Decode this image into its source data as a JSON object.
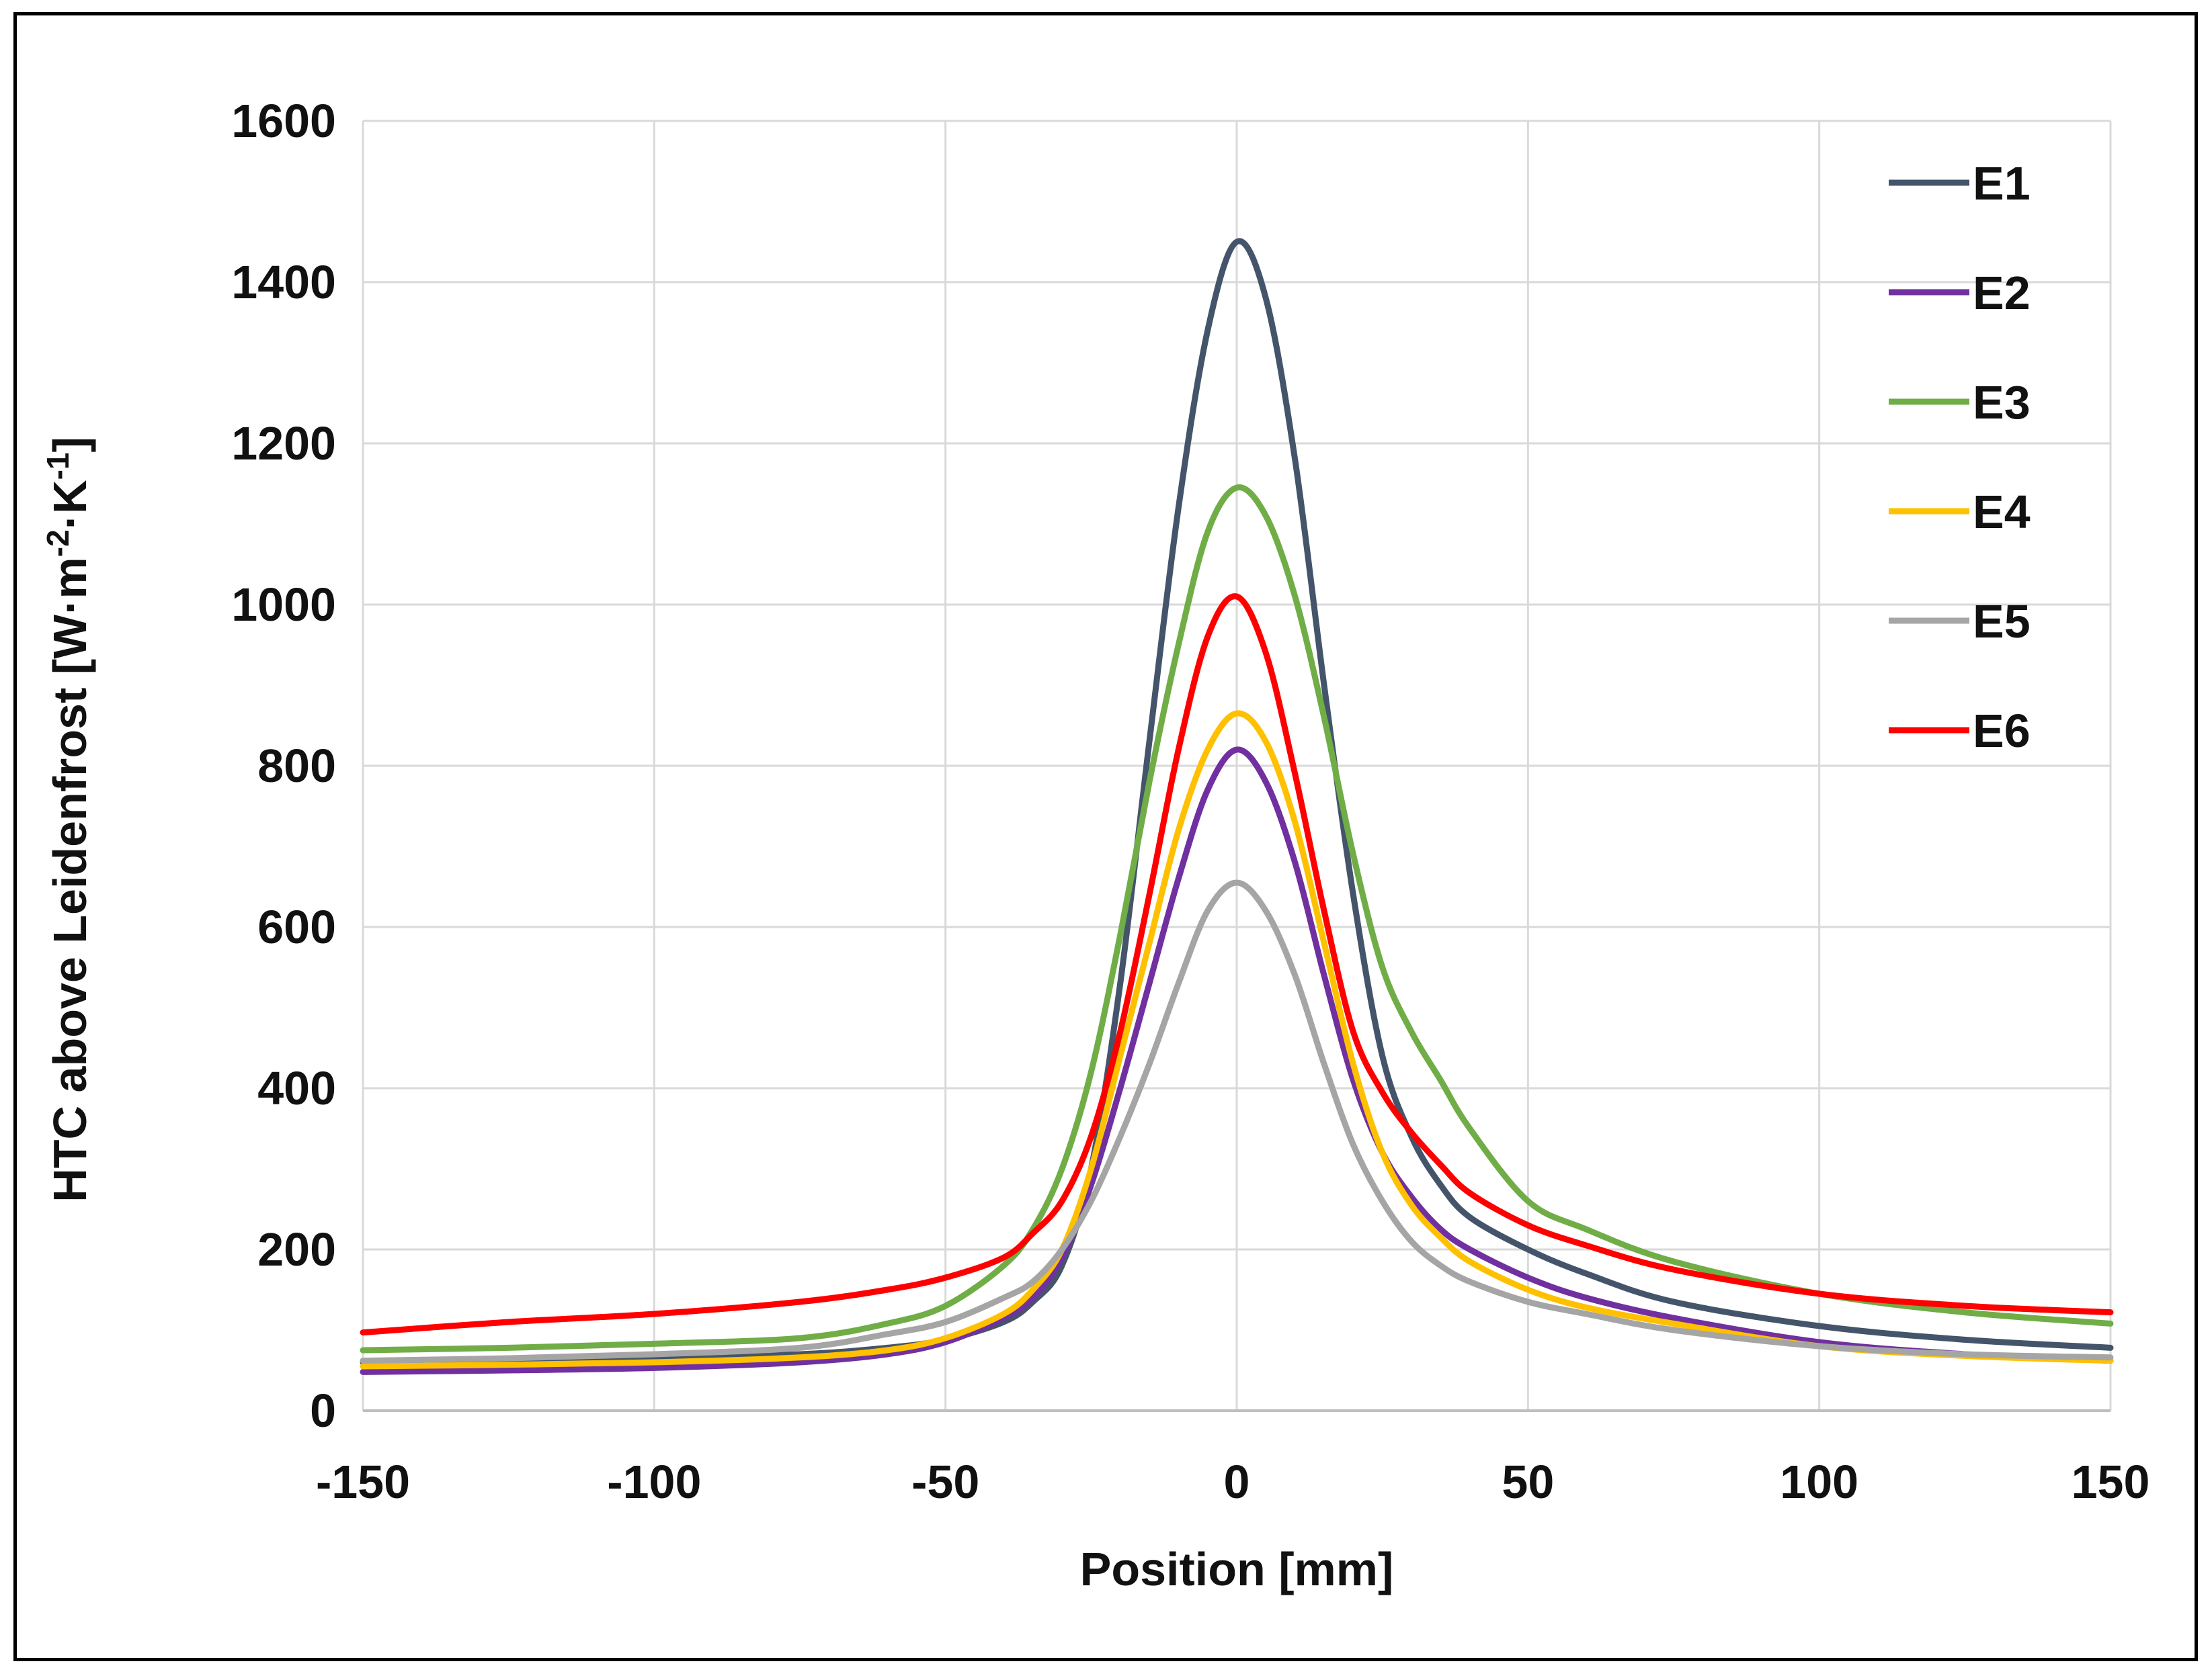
{
  "chart_data": {
    "type": "line",
    "title": "",
    "xlabel": "Position [mm]",
    "ylabel": {
      "base": "HTC above Leidenfrost [W·m",
      "exp1": "-2",
      "mid": "·K",
      "exp2": "-1",
      "end": "]"
    },
    "xlim": [
      -150,
      150
    ],
    "ylim": [
      0,
      1600
    ],
    "xticks": [
      -150,
      -100,
      -50,
      0,
      50,
      100,
      150
    ],
    "yticks": [
      0,
      200,
      400,
      600,
      800,
      1000,
      1200,
      1400,
      1600
    ],
    "grid": true,
    "legend_position": "top-right",
    "x": [
      -150,
      -125,
      -100,
      -75,
      -60,
      -50,
      -40,
      -35,
      -30,
      -25,
      -20,
      -15,
      -10,
      -5,
      0,
      5,
      10,
      15,
      20,
      25,
      30,
      35,
      40,
      50,
      60,
      75,
      100,
      125,
      150
    ],
    "series": [
      {
        "name": "E1",
        "color": "#44546A",
        "values": [
          60,
          62,
          65,
          70,
          78,
          88,
          110,
          135,
          180,
          300,
          530,
          830,
          1120,
          1340,
          1450,
          1380,
          1180,
          900,
          640,
          440,
          340,
          280,
          240,
          200,
          170,
          135,
          105,
          88,
          78
        ]
      },
      {
        "name": "E2",
        "color": "#7030A0",
        "values": [
          48,
          50,
          53,
          60,
          70,
          85,
          115,
          140,
          190,
          280,
          400,
          530,
          660,
          770,
          820,
          780,
          680,
          540,
          410,
          320,
          265,
          225,
          200,
          165,
          140,
          115,
          85,
          70,
          62
        ]
      },
      {
        "name": "E3",
        "color": "#70AD47",
        "values": [
          75,
          78,
          83,
          90,
          108,
          130,
          180,
          225,
          300,
          420,
          590,
          780,
          950,
          1090,
          1145,
          1110,
          1010,
          860,
          690,
          550,
          470,
          410,
          350,
          260,
          225,
          185,
          145,
          122,
          108
        ]
      },
      {
        "name": "E4",
        "color": "#FFC000",
        "values": [
          55,
          57,
          60,
          66,
          75,
          90,
          120,
          150,
          200,
          300,
          440,
          580,
          720,
          820,
          865,
          830,
          730,
          580,
          430,
          320,
          255,
          215,
          185,
          150,
          128,
          108,
          80,
          68,
          62
        ]
      },
      {
        "name": "E5",
        "color": "#A5A5A5",
        "values": [
          62,
          65,
          70,
          78,
          95,
          110,
          140,
          160,
          200,
          260,
          340,
          430,
          530,
          620,
          655,
          620,
          540,
          430,
          330,
          260,
          210,
          180,
          160,
          135,
          120,
          100,
          80,
          70,
          66
        ]
      },
      {
        "name": "E6",
        "color": "#FF0000",
        "values": [
          97,
          110,
          120,
          135,
          150,
          165,
          190,
          220,
          260,
          340,
          470,
          640,
          820,
          960,
          1010,
          940,
          790,
          620,
          470,
          395,
          345,
          305,
          270,
          230,
          205,
          175,
          145,
          130,
          122
        ]
      }
    ]
  }
}
